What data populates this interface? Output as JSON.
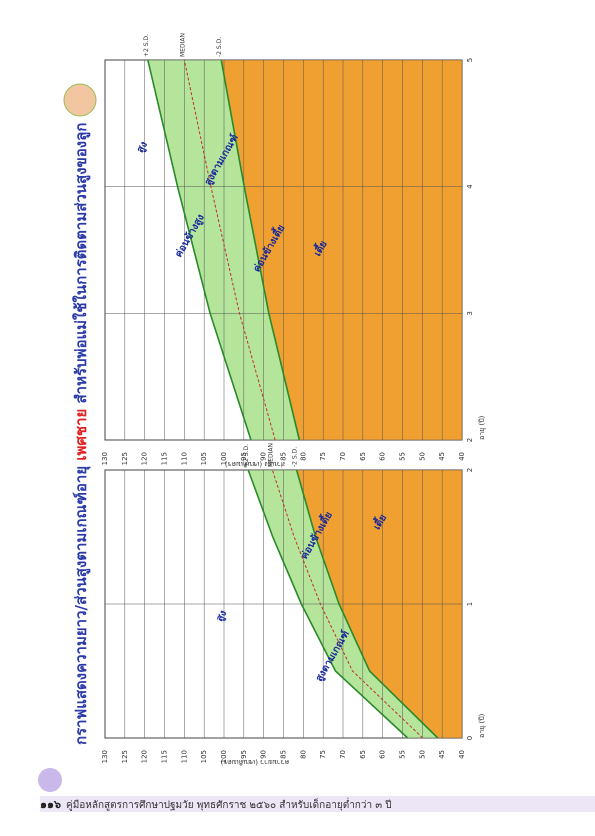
{
  "header": {
    "title_part1": "กราฟแสดงความยาว/ส่วนสูงตามเกณฑ์อายุ",
    "title_highlight": "เพศชาย",
    "title_part2": "สำหรับพ่อแม่ใช้ในการติดตามส่วนสูงของลูก"
  },
  "footer": {
    "page": "๑๑๖",
    "text": "คู่มือหลักสูตรการศึกษาปฐมวัย พุทธศักราช ๒๕๖๐ สำหรับเด็กอายุต่ำกว่า ๓ ปี"
  },
  "charts": [
    {
      "type": "line",
      "value_label": "ความยาว (เซนติเมตร)",
      "age_label": "อายุ (ปี)",
      "xlim": [
        0,
        2
      ],
      "xticks": [
        0,
        1,
        2
      ],
      "ylim": [
        40,
        130
      ],
      "yticks": [
        40,
        45,
        50,
        55,
        60,
        65,
        70,
        75,
        80,
        85,
        90,
        95,
        100,
        105,
        110,
        115,
        120,
        125,
        130
      ],
      "series": [
        {
          "name": "+2 S.D.",
          "color": "#2a8a2a",
          "x": [
            0,
            0.5,
            1,
            1.5,
            2
          ],
          "values": [
            53.7,
            71.9,
            80.5,
            87.7,
            93.9
          ]
        },
        {
          "name": "MEDIAN",
          "color": "#c03030",
          "x": [
            0,
            0.5,
            1,
            1.5,
            2
          ],
          "values": [
            49.9,
            67.6,
            75.7,
            82.3,
            87.8
          ]
        },
        {
          "name": "-2 S.D.",
          "color": "#2a8a2a",
          "x": [
            0,
            0.5,
            1,
            1.5,
            2
          ],
          "values": [
            46.1,
            63.3,
            71.0,
            76.9,
            81.7
          ]
        }
      ],
      "annotations": [
        "สูง",
        "สูงตามเกณฑ์",
        "ค่อนข้างเตี้ย",
        "เตี้ย"
      ]
    },
    {
      "type": "line",
      "value_label": "ส่วนสูง (เซนติเมตร)",
      "age_label": "อายุ (ปี)",
      "xlim": [
        2,
        5
      ],
      "xticks": [
        2,
        3,
        4,
        5
      ],
      "ylim": [
        40,
        130
      ],
      "yticks": [
        40,
        45,
        50,
        55,
        60,
        65,
        70,
        75,
        80,
        85,
        90,
        95,
        100,
        105,
        110,
        115,
        120,
        125,
        130
      ],
      "series": [
        {
          "name": "+2 S.D.",
          "color": "#2a8a2a",
          "x": [
            2,
            3,
            4,
            5
          ],
          "values": [
            93.2,
            103.5,
            111.7,
            119.2
          ]
        },
        {
          "name": "MEDIAN",
          "color": "#c03030",
          "x": [
            2,
            3,
            4,
            5
          ],
          "values": [
            87.1,
            96.1,
            103.3,
            110.0
          ]
        },
        {
          "name": "-2 S.D.",
          "color": "#2a8a2a",
          "x": [
            2,
            3,
            4,
            5
          ],
          "values": [
            81.0,
            88.7,
            94.9,
            100.7
          ]
        }
      ],
      "annotations": [
        "สูง",
        "ค่อนข้างสูง",
        "สูงตามเกณฑ์",
        "ค่อนข้างเตี้ย",
        "เตี้ย"
      ]
    }
  ]
}
